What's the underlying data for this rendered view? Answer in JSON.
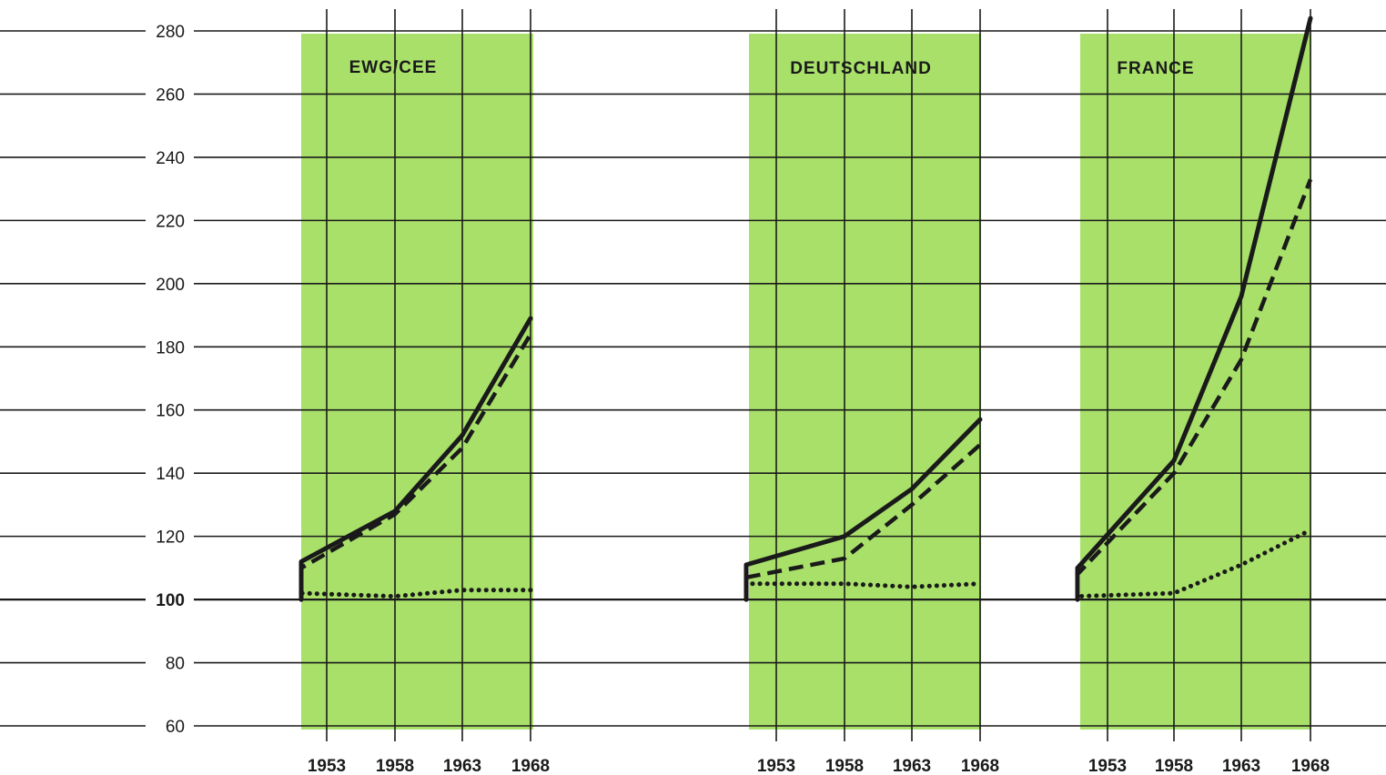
{
  "chart_data": {
    "type": "line",
    "ylim": [
      60,
      280
    ],
    "y_ticks": [
      60,
      80,
      100,
      120,
      140,
      160,
      180,
      200,
      220,
      240,
      260,
      280
    ],
    "x_ticks": [
      "1953",
      "1958",
      "1963",
      "1968"
    ],
    "grid": true,
    "panel_color": "#a8e06a",
    "line_color": "#1a1a1a",
    "panels": [
      {
        "title": "EWG/CEE",
        "series": [
          {
            "style": "solid",
            "x": [
              1951,
              1953,
              1958,
              1963,
              1968
            ],
            "values": [
              100,
              112,
              128,
              152,
              189
            ]
          },
          {
            "style": "dashed",
            "x": [
              1951,
              1953,
              1958,
              1963,
              1968
            ],
            "values": [
              100,
              110,
              127,
              148,
              184
            ]
          },
          {
            "style": "dotted",
            "x": [
              1951,
              1953,
              1958,
              1963,
              1968
            ],
            "values": [
              100,
              102,
              101,
              103,
              103
            ]
          }
        ]
      },
      {
        "title": "DEUTSCHLAND",
        "series": [
          {
            "style": "solid",
            "x": [
              1951,
              1953,
              1958,
              1963,
              1968
            ],
            "values": [
              100,
              111,
              120,
              135,
              157
            ]
          },
          {
            "style": "dashed",
            "x": [
              1951,
              1953,
              1958,
              1963,
              1968
            ],
            "values": [
              100,
              107,
              113,
              130,
              149
            ]
          },
          {
            "style": "dotted",
            "x": [
              1951,
              1953,
              1958,
              1963,
              1968
            ],
            "values": [
              100,
              105,
              105,
              104,
              105
            ]
          }
        ]
      },
      {
        "title": "FRANCE",
        "series": [
          {
            "style": "solid",
            "x": [
              1951,
              1953,
              1958,
              1963,
              1968
            ],
            "values": [
              100,
              110,
              144,
              196,
              284
            ]
          },
          {
            "style": "dashed",
            "x": [
              1951,
              1953,
              1958,
              1963,
              1968
            ],
            "values": [
              100,
              108,
              140,
              176,
              233
            ]
          },
          {
            "style": "dotted",
            "x": [
              1951,
              1953,
              1958,
              1963,
              1968
            ],
            "values": [
              100,
              101,
              102,
              111,
              122
            ]
          }
        ]
      }
    ]
  }
}
